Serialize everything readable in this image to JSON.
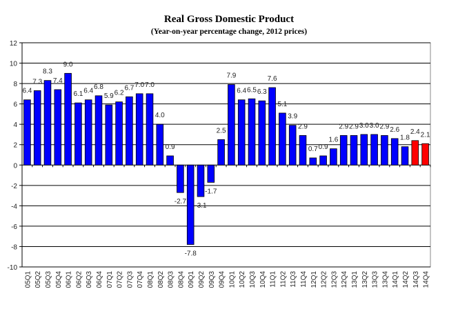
{
  "chart_data": {
    "type": "bar",
    "title": "Real Gross Domestic Product",
    "subtitle": "(Year-on-year percentage change, 2012 prices)",
    "xlabel": "",
    "ylabel": "",
    "ylim": [
      -10,
      12
    ],
    "yticks": [
      -10,
      -8,
      -6,
      -4,
      -2,
      0,
      2,
      4,
      6,
      8,
      10,
      12
    ],
    "grid": true,
    "legend": "none",
    "categories": [
      "05Q1",
      "05Q2",
      "05Q3",
      "05Q4",
      "06Q1",
      "06Q2",
      "06Q3",
      "06Q4",
      "07Q1",
      "07Q2",
      "07Q3",
      "07Q4",
      "08Q1",
      "08Q2",
      "08Q3",
      "08Q4",
      "09Q1",
      "09Q2",
      "09Q3",
      "09Q4",
      "10Q1",
      "10Q2",
      "10Q3",
      "10Q4",
      "11Q1",
      "11Q2",
      "11Q3",
      "11Q4",
      "12Q1",
      "12Q2",
      "12Q3",
      "12Q4",
      "13Q1",
      "13Q2",
      "13Q3",
      "13Q4",
      "14Q1",
      "14Q2",
      "14Q3",
      "14Q4"
    ],
    "values": [
      6.4,
      7.3,
      8.3,
      7.4,
      9.0,
      6.1,
      6.4,
      6.8,
      5.9,
      6.2,
      6.7,
      7.0,
      7.0,
      4.0,
      0.9,
      -2.7,
      -7.8,
      -3.1,
      -1.7,
      2.5,
      7.9,
      6.4,
      6.5,
      6.3,
      7.6,
      5.1,
      3.9,
      2.9,
      0.7,
      0.9,
      1.6,
      2.9,
      2.9,
      3.0,
      3.0,
      2.9,
      2.6,
      1.8,
      2.4,
      2.1
    ],
    "bar_colors": {
      "actual": "#0000ff",
      "highlighted": "#ff0000"
    },
    "highlighted_categories": [
      "14Q3",
      "14Q4"
    ]
  }
}
